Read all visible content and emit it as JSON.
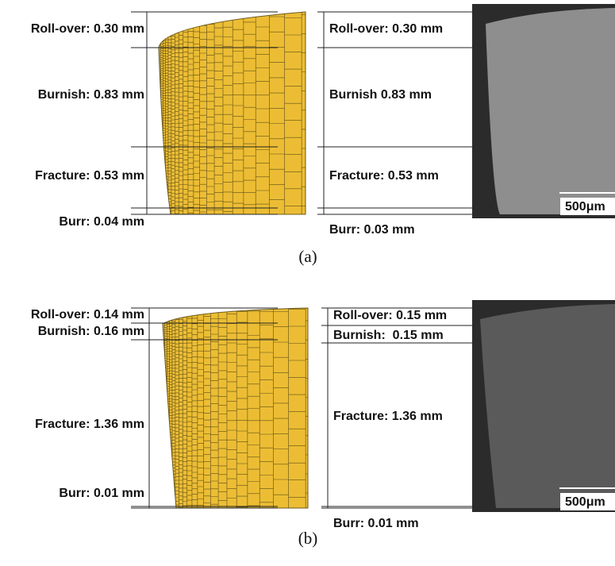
{
  "panels": [
    {
      "caption": "(a)",
      "simulation": [
        "Roll-over: 0.30 mm",
        "Burnish: 0.83 mm",
        "Fracture: 0.53 mm",
        "Burr: 0.04 mm"
      ],
      "experiment": [
        "Roll-over: 0.30 mm",
        "Burnish 0.83 mm",
        "Fracture: 0.53 mm",
        "Burr: 0.03 mm"
      ],
      "scale_bar": "500μm"
    },
    {
      "caption": "(b)",
      "simulation": [
        "Roll-over: 0.14 mm",
        "Burnish: 0.16 mm",
        "Fracture: 1.36 mm",
        "Burr: 0.01 mm"
      ],
      "experiment": [
        "Roll-over: 0.15 mm",
        "Burnish:  0.15 mm",
        "Fracture: 1.36 mm",
        "Burr: 0.01 mm"
      ],
      "scale_bar": "500μm"
    }
  ]
}
